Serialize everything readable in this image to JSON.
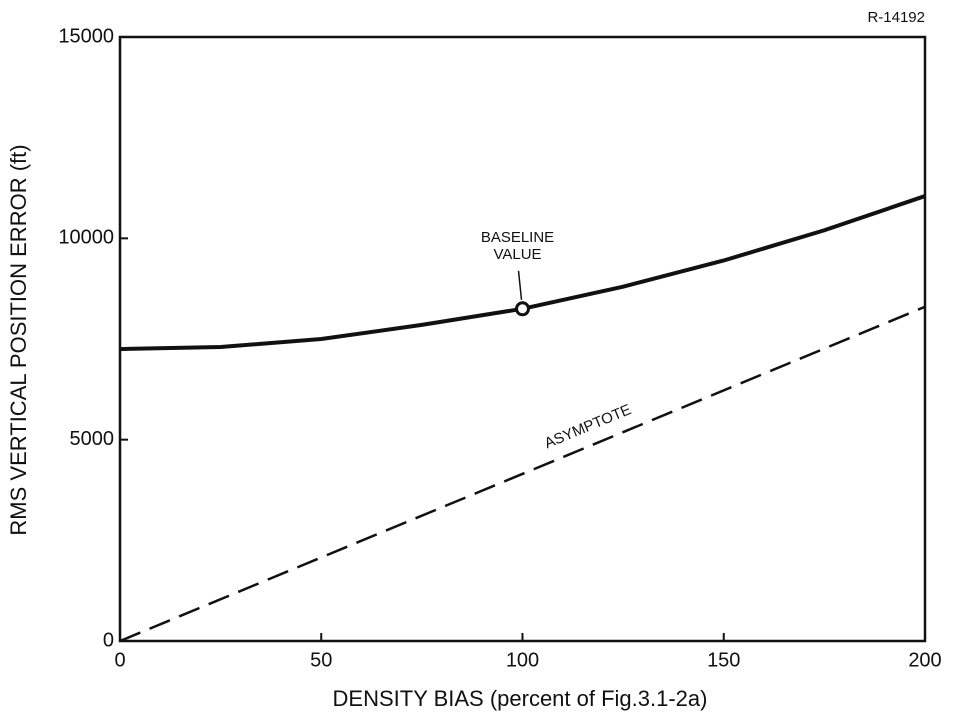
{
  "chart_data": {
    "type": "line",
    "id_label": "R-14192",
    "xlabel": "DENSITY BIAS (percent of Fig.3.1-2a)",
    "ylabel": "RMS VERTICAL POSITION ERROR (ft)",
    "xlim": [
      0,
      200
    ],
    "ylim": [
      0,
      15000
    ],
    "xticks": [
      0,
      50,
      100,
      150,
      200
    ],
    "yticks": [
      0,
      5000,
      10000,
      15000
    ],
    "series": [
      {
        "color": "#111111",
        "style": "solid",
        "x": [
          0,
          25,
          50,
          75,
          100,
          125,
          150,
          175,
          200
        ],
        "values": [
          7250,
          7300,
          7500,
          7850,
          8250,
          8800,
          9450,
          10200,
          11050
        ]
      },
      {
        "name": "ASYMPTOTE",
        "color": "#111111",
        "style": "dashed",
        "x": [
          0,
          200
        ],
        "values": [
          0,
          8300
        ]
      }
    ],
    "annotations": [
      {
        "text": [
          "BASELINE",
          "VALUE"
        ],
        "x": 100,
        "y": 8250
      }
    ]
  }
}
